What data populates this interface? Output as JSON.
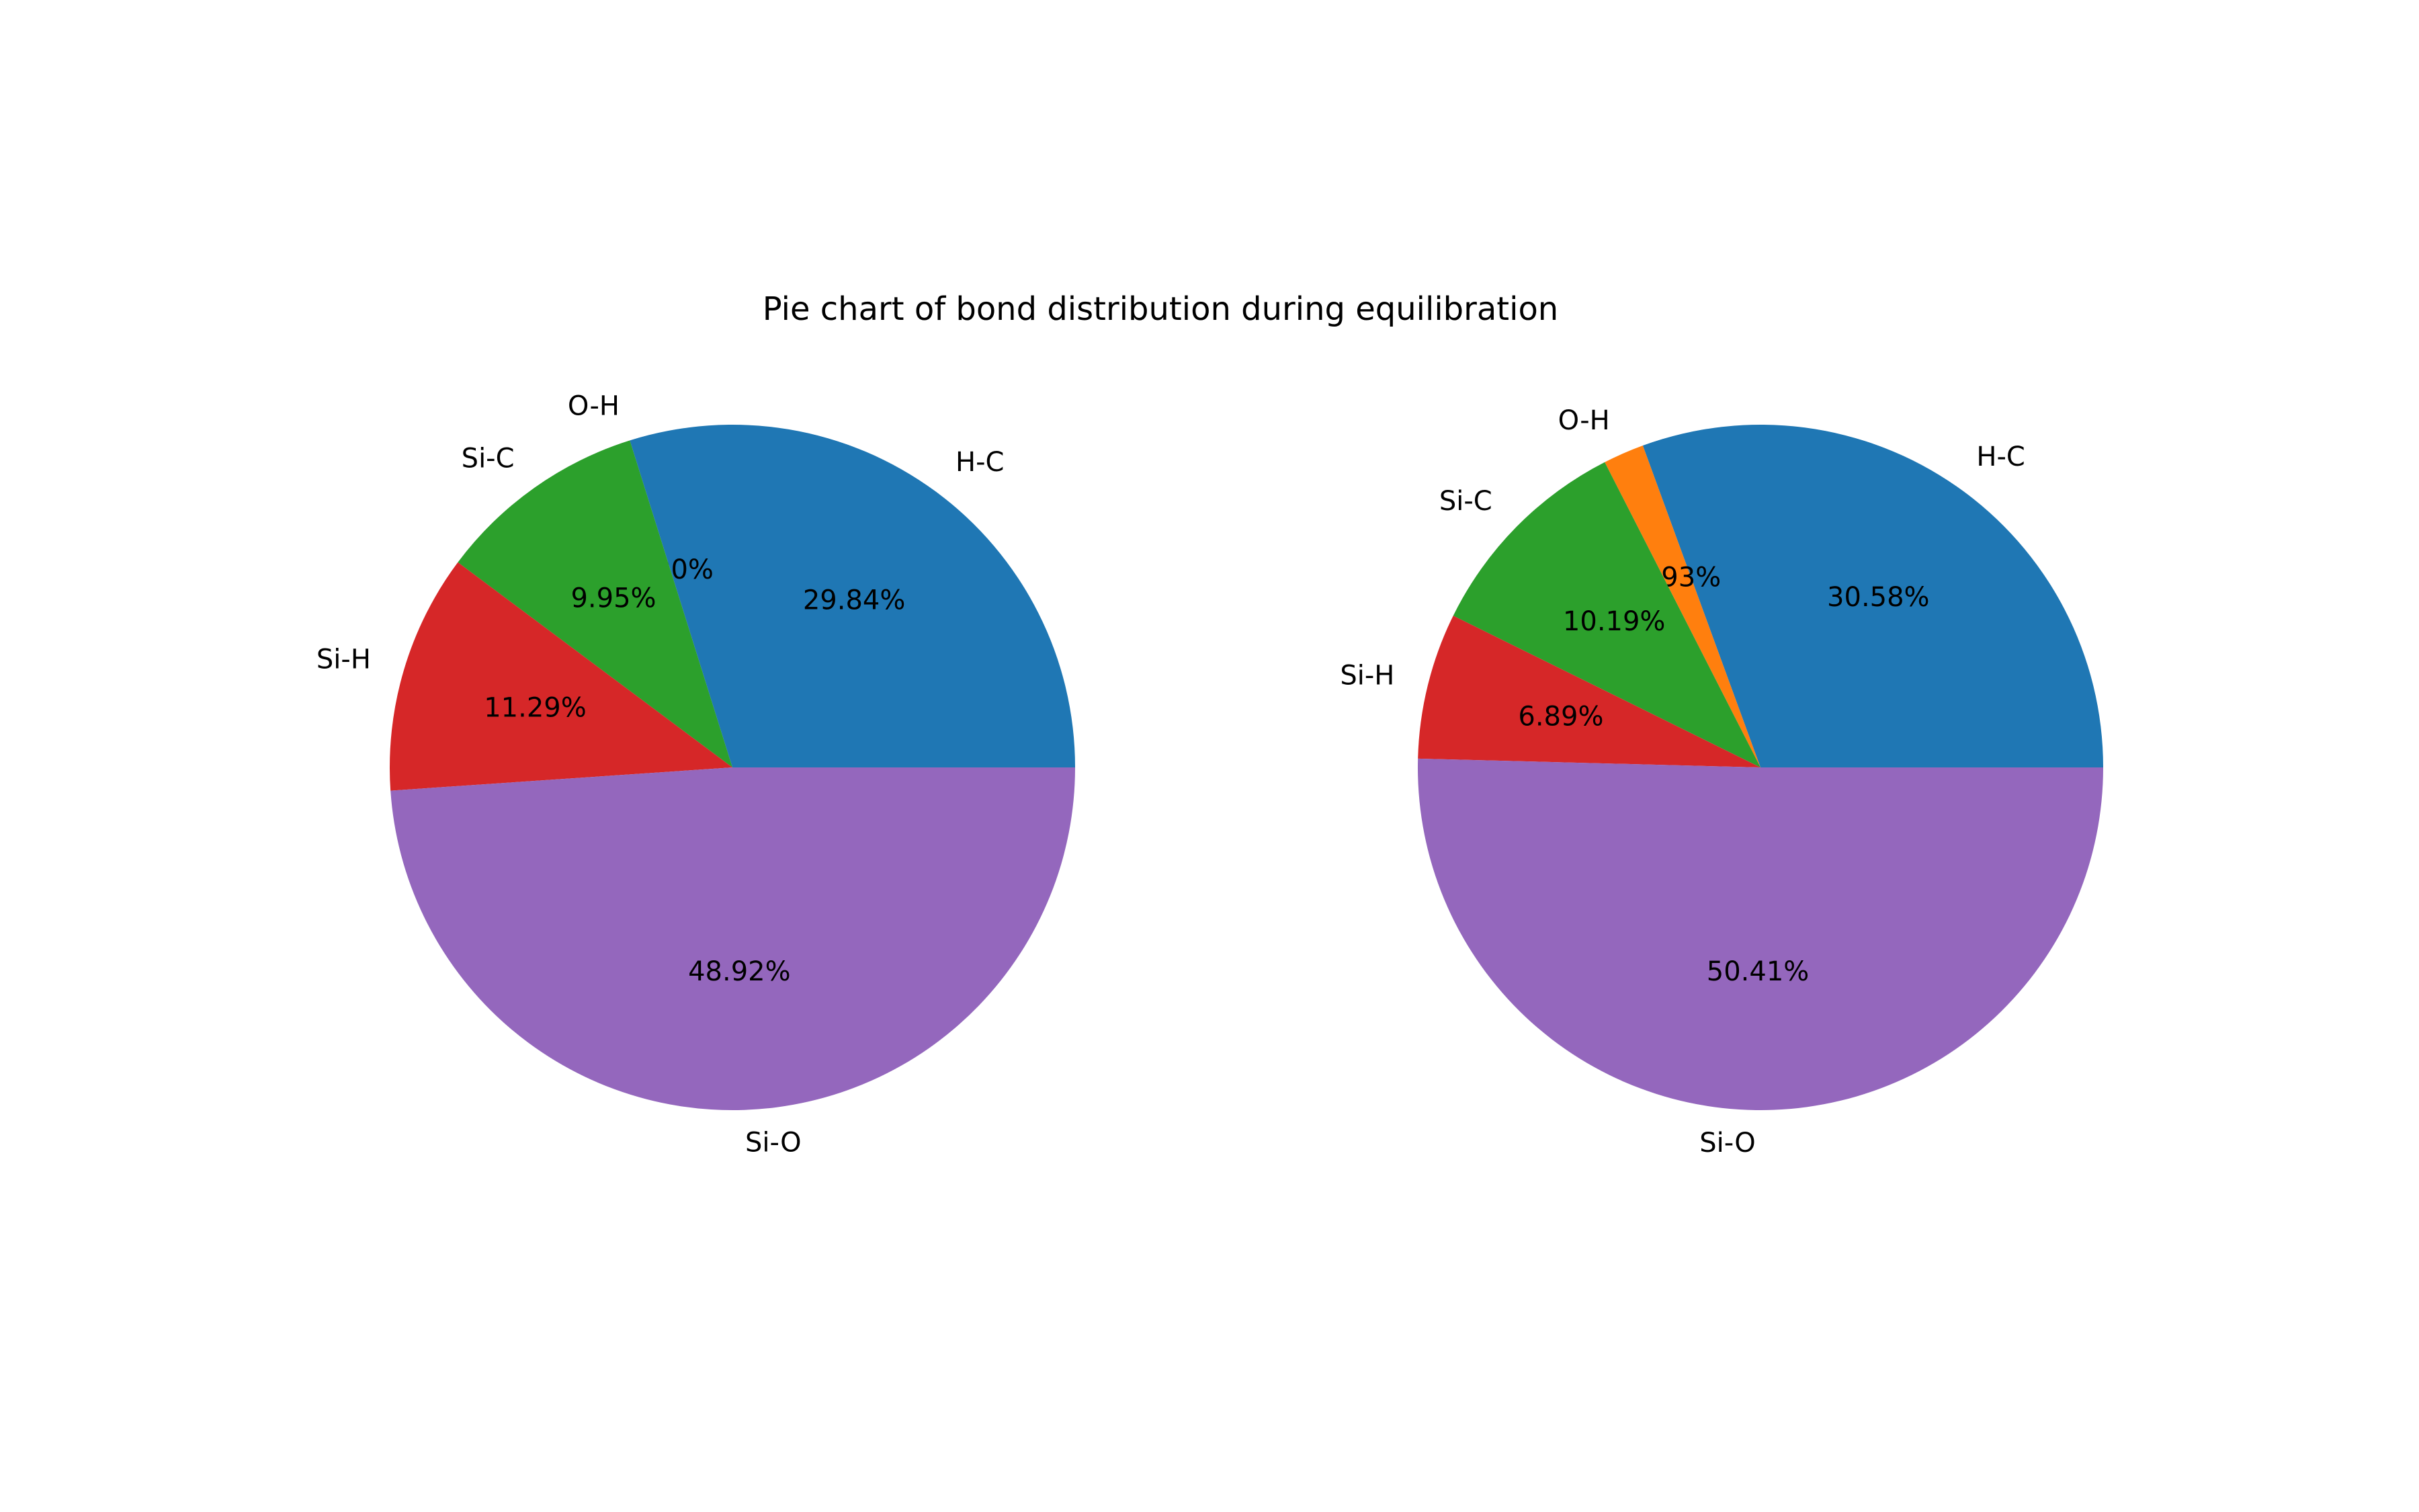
{
  "figure": {
    "title": "Pie chart of bond distribution during equilibration"
  },
  "chart_data": [
    {
      "type": "pie",
      "title": "",
      "start_angle_deg": 0,
      "direction": "counterclockwise",
      "slices": [
        {
          "label": "H-C",
          "value": 29.84,
          "pct_text": "29.84%",
          "color": "#1f77b4"
        },
        {
          "label": "O-H",
          "value": 0.0,
          "pct_text": "0.00%",
          "color": "#ff7f0e"
        },
        {
          "label": "Si-C",
          "value": 9.95,
          "pct_text": "9.95%",
          "color": "#2ca02c"
        },
        {
          "label": "Si-H",
          "value": 11.29,
          "pct_text": "11.29%",
          "color": "#d62728"
        },
        {
          "label": "Si-O",
          "value": 48.92,
          "pct_text": "48.92%",
          "color": "#9467bd"
        }
      ]
    },
    {
      "type": "pie",
      "title": "",
      "start_angle_deg": 0,
      "direction": "counterclockwise",
      "slices": [
        {
          "label": "H-C",
          "value": 30.58,
          "pct_text": "30.58%",
          "color": "#1f77b4"
        },
        {
          "label": "O-H",
          "value": 1.93,
          "pct_text": "1.93%",
          "color": "#ff7f0e"
        },
        {
          "label": "Si-C",
          "value": 10.19,
          "pct_text": "10.19%",
          "color": "#2ca02c"
        },
        {
          "label": "Si-H",
          "value": 6.89,
          "pct_text": "6.89%",
          "color": "#d62728"
        },
        {
          "label": "Si-O",
          "value": 50.41,
          "pct_text": "50.41%",
          "color": "#9467bd"
        }
      ]
    }
  ]
}
